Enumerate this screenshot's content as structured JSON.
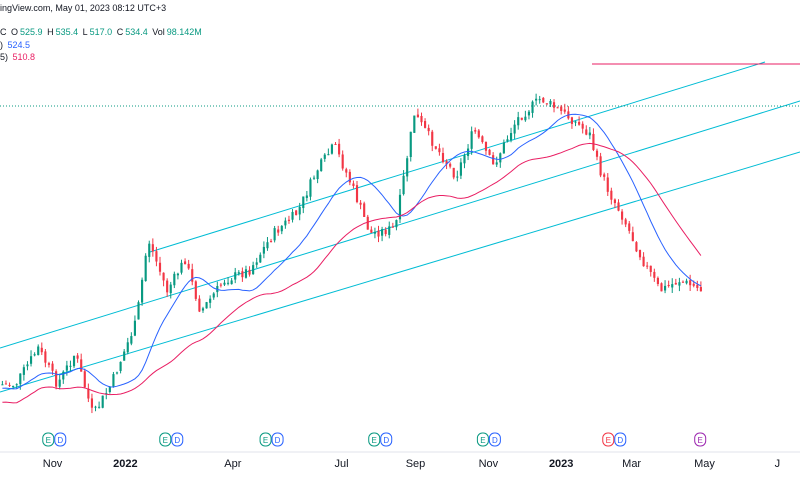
{
  "header": {
    "source_line": "ingView.com, May 01, 2023 08:12 UTC+3",
    "ohlc_prefix": "C",
    "ohlc": {
      "o_label": "O",
      "o": "525.9",
      "h_label": "H",
      "h": "535.4",
      "l_label": "L",
      "l": "517.0",
      "c_label": "C",
      "c": "534.4",
      "vol_label": "Vol",
      "vol": "98.142M"
    }
  },
  "indicators": [
    {
      "label_suffix": ")",
      "value": "524.5",
      "color": "#2962ff"
    },
    {
      "label_suffix": "5)",
      "value": "510.8",
      "color": "#e91e63"
    }
  ],
  "colors": {
    "up": "#089981",
    "down": "#f23645",
    "ma_fast": "#2962ff",
    "ma_slow": "#e91e63",
    "channel": "#00bcd4",
    "resistance": "#e91e63",
    "dotted": "#089981"
  },
  "chart_data": {
    "type": "candlestick",
    "x_axis_labels": [
      {
        "text": "Nov",
        "bold": false
      },
      {
        "text": "2022",
        "bold": true
      },
      {
        "text": "Apr",
        "bold": false
      },
      {
        "text": "Jul",
        "bold": false
      },
      {
        "text": "Sep",
        "bold": false
      },
      {
        "text": "Nov",
        "bold": false
      },
      {
        "text": "2023",
        "bold": true
      },
      {
        "text": "Mar",
        "bold": false
      },
      {
        "text": "May",
        "bold": false
      },
      {
        "text": "J",
        "bold": false
      }
    ],
    "x_axis_label_dates": [
      "2021-11-01",
      "2022-01-01",
      "2022-04-01",
      "2022-07-01",
      "2022-09-01",
      "2022-11-01",
      "2023-01-01",
      "2023-03-01",
      "2023-05-01",
      "2023-07-01"
    ],
    "events": [
      {
        "date": "2021-10-28",
        "labels": [
          "E",
          "D"
        ],
        "kind": "normal"
      },
      {
        "date": "2022-02-03",
        "labels": [
          "E",
          "D"
        ],
        "kind": "normal"
      },
      {
        "date": "2022-04-28",
        "labels": [
          "E",
          "D"
        ],
        "kind": "normal"
      },
      {
        "date": "2022-07-28",
        "labels": [
          "E",
          "D"
        ],
        "kind": "normal"
      },
      {
        "date": "2022-10-27",
        "labels": [
          "E",
          "D"
        ],
        "kind": "normal"
      },
      {
        "date": "2023-02-09",
        "labels": [
          "E",
          "D"
        ],
        "kind": "red"
      },
      {
        "date": "2023-04-27",
        "labels": [
          "E"
        ],
        "kind": "purple"
      }
    ],
    "price_path": [
      [
        "2021-10-01",
        0.62
      ],
      [
        "2021-10-20",
        0.55
      ],
      [
        "2021-11-05",
        0.62
      ],
      [
        "2021-11-20",
        0.56
      ],
      [
        "2021-12-05",
        0.68
      ],
      [
        "2021-12-20",
        0.62
      ],
      [
        "2022-01-10",
        0.5
      ],
      [
        "2022-01-20",
        0.34
      ],
      [
        "2022-02-05",
        0.44
      ],
      [
        "2022-02-20",
        0.38
      ],
      [
        "2022-03-05",
        0.48
      ],
      [
        "2022-03-25",
        0.42
      ],
      [
        "2022-04-15",
        0.4
      ],
      [
        "2022-05-05",
        0.33
      ],
      [
        "2022-05-25",
        0.29
      ],
      [
        "2022-06-10",
        0.21
      ],
      [
        "2022-06-25",
        0.16
      ],
      [
        "2022-07-10",
        0.24
      ],
      [
        "2022-07-25",
        0.33
      ],
      [
        "2022-08-15",
        0.32
      ],
      [
        "2022-08-31",
        0.1
      ],
      [
        "2022-09-20",
        0.17
      ],
      [
        "2022-10-05",
        0.22
      ],
      [
        "2022-10-20",
        0.13
      ],
      [
        "2022-11-05",
        0.2
      ],
      [
        "2022-11-25",
        0.11
      ],
      [
        "2022-12-15",
        0.07
      ],
      [
        "2023-01-10",
        0.11
      ],
      [
        "2023-01-25",
        0.14
      ],
      [
        "2023-02-01",
        0.2
      ],
      [
        "2023-02-10",
        0.25
      ],
      [
        "2023-02-20",
        0.29
      ],
      [
        "2023-03-10",
        0.38
      ],
      [
        "2023-03-25",
        0.44
      ],
      [
        "2023-04-10",
        0.42
      ],
      [
        "2023-04-30",
        0.44
      ]
    ],
    "ma_fast_value": "524.5",
    "ma_slow_value": "510.8"
  }
}
